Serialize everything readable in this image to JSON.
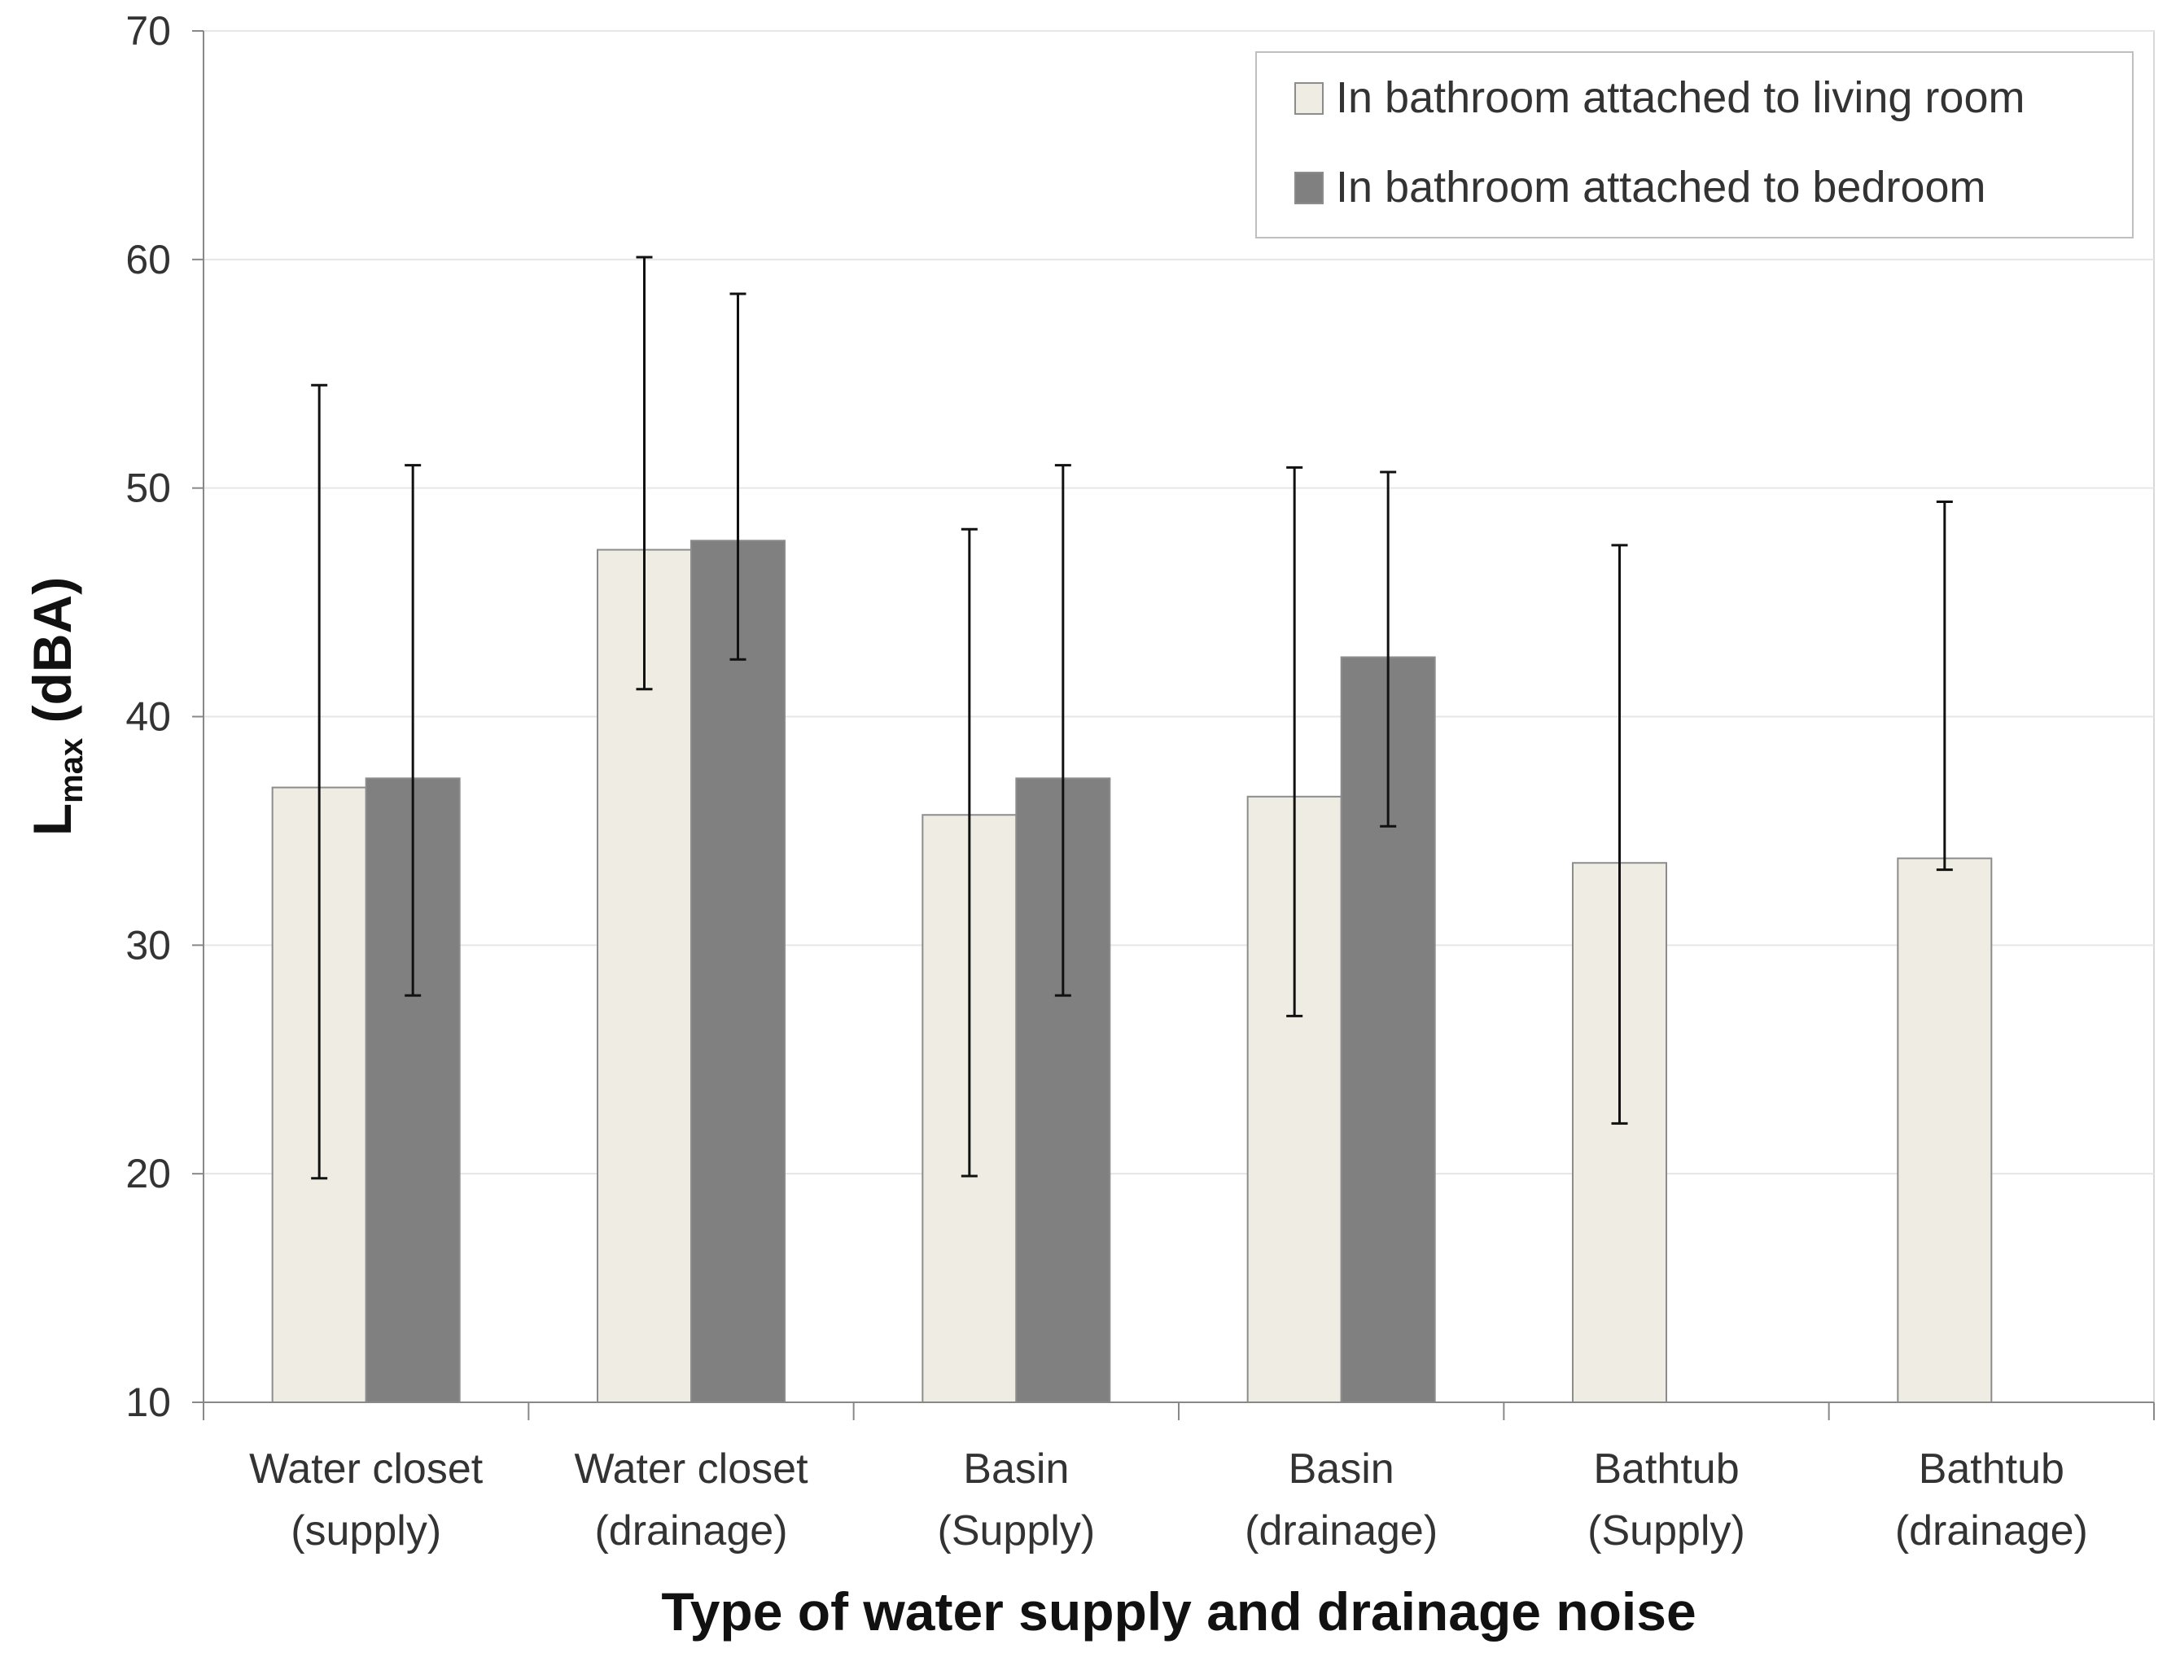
{
  "chart_data": {
    "type": "bar",
    "title": "",
    "xlabel": "Type of water supply and drainage noise",
    "ylabel_main": "L",
    "ylabel_sub": "max",
    "ylabel_unit": " (dBA)",
    "ylim": [
      10,
      70
    ],
    "yticks": [
      10,
      20,
      30,
      40,
      50,
      60,
      70
    ],
    "grid": true,
    "legend_position": "top-right",
    "categories": [
      {
        "line1": "Water closet",
        "line2": "(supply)"
      },
      {
        "line1": "Water closet",
        "line2": "(drainage)"
      },
      {
        "line1": "Basin",
        "line2": "(Supply)"
      },
      {
        "line1": "Basin",
        "line2": "(drainage)"
      },
      {
        "line1": "Bathtub",
        "line2": "(Supply)"
      },
      {
        "line1": "Bathtub",
        "line2": "(drainage)"
      }
    ],
    "series": [
      {
        "name": "In bathroom attached to living room",
        "color": "#efede3",
        "values": [
          36.9,
          47.3,
          35.7,
          36.5,
          33.6,
          33.8
        ],
        "err_low": [
          19.8,
          41.2,
          19.9,
          26.9,
          22.2,
          33.3
        ],
        "err_high": [
          54.5,
          60.1,
          48.2,
          50.9,
          47.5,
          49.4
        ]
      },
      {
        "name": "In bathroom attached to bedroom",
        "color": "#808080",
        "values": [
          37.3,
          47.7,
          37.3,
          42.6,
          null,
          null
        ],
        "err_low": [
          27.8,
          42.5,
          27.8,
          35.2,
          null,
          null
        ],
        "err_high": [
          51.0,
          58.5,
          51.0,
          50.7,
          null,
          null
        ]
      }
    ]
  }
}
